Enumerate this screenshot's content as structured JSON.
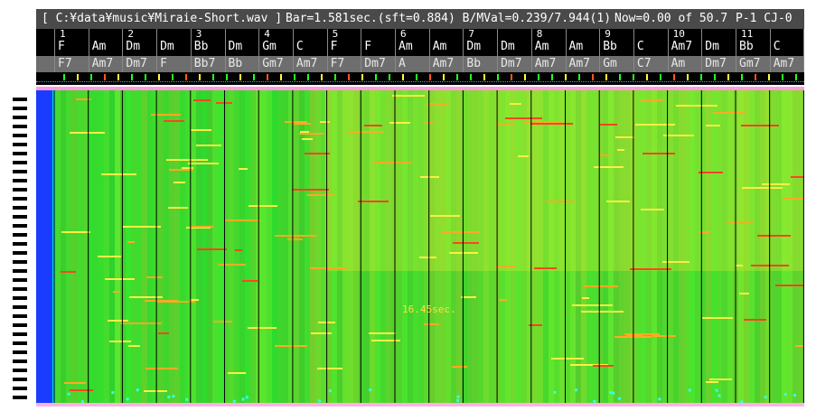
{
  "title_bar": {
    "file": "[ C:¥data¥music¥Miraie-Short.wav ]",
    "bar_info": "Bar=1.581sec.(sft=0.884) B/MVal=0.239/7.944(1)",
    "position": "Now=0.00 of 50.7",
    "page": "P-1 CJ-0"
  },
  "measure_numbers": [
    "1",
    "2",
    "3",
    "4",
    "5",
    "6",
    "7",
    "8",
    "9",
    "10",
    "11"
  ],
  "chords_row1": [
    "F",
    "Am",
    "Dm",
    "Dm",
    "Bb",
    "Dm",
    "Gm",
    "C",
    "F",
    "F",
    "Am",
    "Am",
    "Dm",
    "Dm",
    "Am",
    "Am",
    "Bb",
    "C",
    "Am7",
    "Dm",
    "Bb",
    "C"
  ],
  "chords_row2": [
    "F7",
    "Am7",
    "Dm7",
    "F",
    "Bb7",
    "Bb",
    "Gm7",
    "Am7",
    "F7",
    "Dm7",
    "A",
    "Am7",
    "Bb",
    "Dm7",
    "Am7",
    "Am7",
    "Gm",
    "C7",
    "Am",
    "Dm7",
    "Gm7",
    "Am7"
  ],
  "marker_text": "16.45sec.",
  "colors": {
    "titlebar": "#4a4a4a",
    "spectrogram_base": "#33dd33",
    "accent_pink": "#ff9be0",
    "left_band": "#1a3cff"
  },
  "icons": {
    "piano_keys": "keyboard-icon"
  }
}
